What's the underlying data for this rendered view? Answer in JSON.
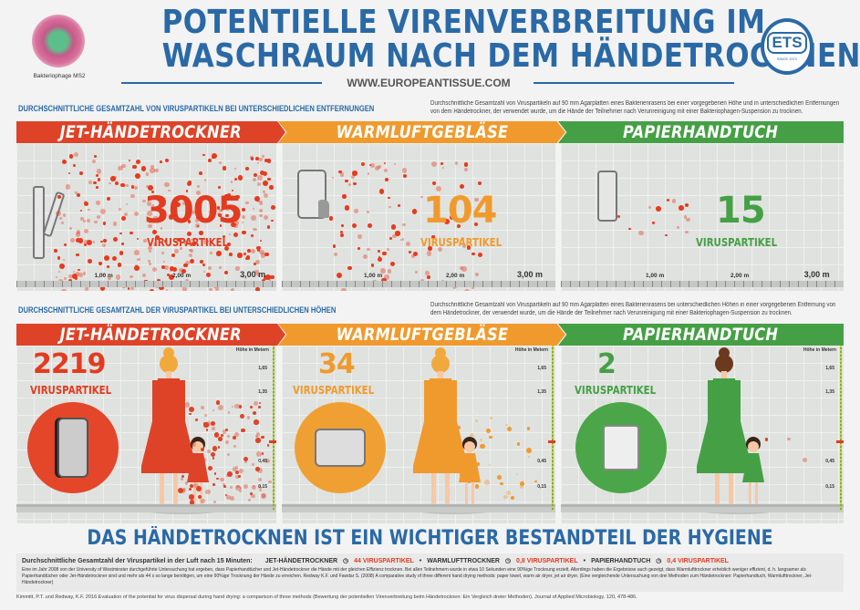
{
  "header": {
    "title_line1": "POTENTIELLE VIRENVERBREITUNG IM",
    "title_line2": "WASCHRAUM NACH DEM HÄNDETROCKNEN",
    "url": "WWW.EUROPEANTISSUE.COM",
    "logo_caption": "Bakteriophage MS2",
    "ets_logo_text": "ETS",
    "ets_logo_since": "SINCE 1971"
  },
  "colors": {
    "jet": "#de4328",
    "warm": "#f09a2e",
    "paper": "#45a045",
    "blue": "#2a69a6"
  },
  "section_distance": {
    "heading": "DURCHSCHNITTLICHE GESAMTZAHL VON VIRUSPARTIKELN BEI UNTERSCHIEDLICHEN ENTFERNUNGEN",
    "description": "Durchschnittliche Gesamtzahl von Viruspartikeln auf 90 mm Agarplatten eines Bakterienrasens bei einer vorgegebenen Höhe und in unterschiedlichen Entfernungen von dem Händetrockner, der verwendet wurde, um die Hände der Teilnehmer nach Verunreinigung mit einer Bakteriophagen-Suspension zu trocknen.",
    "axis_labels": [
      "1,00 m",
      "2,00 m",
      "3,00 m"
    ],
    "panels": [
      {
        "name": "JET-HÄNDETROCKNER",
        "count": "3005",
        "unit": "VIRUSPARTIKEL"
      },
      {
        "name": "WARMLUFTGEBLÄSE",
        "count": "104",
        "unit": "VIRUSPARTIKEL"
      },
      {
        "name": "PAPIERHANDTUCH",
        "count": "15",
        "unit": "VIRUSPARTIKEL"
      }
    ]
  },
  "section_height": {
    "heading": "DURCHSCHNITTLICHE GESAMTZAHL DER VIRUSPARTIKEL BEI UNTERSCHIEDLICHEN HÖHEN",
    "description": "Durchschnittliche Gesamtzahl von Viruspartikeln auf 90 mm Agarplatten eines Bakterienrasens bei unterschiedlichen Höhen in einer vorgegebenen Entfernung von dem Händetrockner, der verwendet wurde, um die Hände der Teilnehmer nach Verunreinigung mit einer Bakteriophagen-Suspension zu trocknen.",
    "axis_title": "Höhe in Metern",
    "axis_ticks": [
      "1,65",
      "1,35",
      "0,45",
      "0,15"
    ],
    "panels": [
      {
        "name": "JET-HÄNDETROCKNER",
        "count": "2219",
        "unit": "VIRUSPARTIKEL"
      },
      {
        "name": "WARMLUFTGEBLÄSE",
        "count": "34",
        "unit": "VIRUSPARTIKEL"
      },
      {
        "name": "PAPIERHANDTUCH",
        "count": "2",
        "unit": "VIRUSPARTIKEL"
      }
    ]
  },
  "headline": "DAS HÄNDETROCKNEN IST EIN WICHTIGER BESTANDTEIL DER HYGIENE",
  "footer": {
    "summary_label": "Durchschnittliche Gesamtzahl der Viruspartikel in der Luft nach 15 Minuten:",
    "items": [
      {
        "name": "JET-HÄNDETROCKNER",
        "value": "44 VIRUSPARTIKEL"
      },
      {
        "name": "WARMLUFTTROCKNER",
        "value": "0,8 VIRUSPARTIKEL"
      },
      {
        "name": "PAPIERHANDTUCH",
        "value": "0,4 VIRUSPARTIKEL"
      }
    ],
    "body": "Eine im Jahr 2008 von der University of Westminster durchgeführte Untersuchung hat ergeben, dass Papierhandtücher und Jet-Händetrockner die Hände mit der gleichen Effizienz trocknen. Bei allen Teilnehmern wurde in etwa 10 Sekunden eine 90%ige Trocknung erzielt. Allerdings haben die Ergebnisse auch gezeigt, dass Warmlufttrockner erheblich weniger effizient, d. h. langsamer als Papierhandtücher oder Jet-Händetrockner sind und mehr als 44 s so lange benötigen, um eine 90%ige Trocknung der Hände zu erreichen. Redway K.F. und Fawdar S. (2008) A comparative study of three different hand drying methods: paper towel, warm air dryer, jet air dryer. (Eine vergleichende Untersuchung von drei Methoden zum Händetrocknen: Papierhandtuch, Warmlufttrockner, Jet-Händetrockner)",
    "citation": "Kimmitt, P.T. und Redway, K.F. 2016 Evaluation of the potential for virus dispersal during hand drying: a comparison of three methods (Bewertung der potentiellen Virenverbreitung beim Händetrocknen: Ein Vergleich dreier Methoden). Journal of Applied Microbiology. 120, 478-486."
  }
}
